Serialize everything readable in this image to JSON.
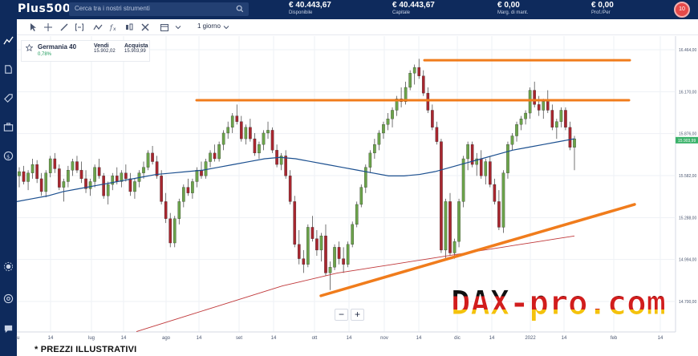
{
  "topbar": {
    "logo": "Plus500",
    "search_placeholder": "Cerca tra i nostri strumenti",
    "stats": [
      {
        "value": "€ 40.443,67",
        "label": "Disponibile"
      },
      {
        "value": "€ 40.443,67",
        "label": "Capitale"
      },
      {
        "value": "€ 0,00",
        "label": "Marg. di mant."
      },
      {
        "value": "€ 0,00",
        "label": "Prof./Per"
      }
    ],
    "avatar_text": "10"
  },
  "toolbar": {
    "timeframe_label": "1 giorno"
  },
  "instrument": {
    "name": "Germania 40",
    "change": "0,78%",
    "sell_label": "Vendi",
    "sell_price": "15.902,02",
    "buy_label": "Acquista",
    "buy_price": "15.903,99"
  },
  "chart_data": {
    "type": "candlestick",
    "x_tick_labels": [
      "lu",
      "14",
      "lug",
      "14",
      "ago",
      "14",
      "set",
      "14",
      "ott",
      "14",
      "nov",
      "14",
      "dic",
      "14",
      "2022",
      "14",
      "feb",
      "14"
    ],
    "y_tick_labels": [
      "14.700,00",
      "14.994,00",
      "15.288,00",
      "15.582,00",
      "15.876,00",
      "16.170,00",
      "16.464,00"
    ],
    "ylim": [
      14700,
      16464
    ],
    "current_price_label": "15.903,99",
    "candles": [
      [
        15580,
        15640,
        15500,
        15610
      ],
      [
        15610,
        15650,
        15520,
        15540
      ],
      [
        15540,
        15620,
        15480,
        15600
      ],
      [
        15600,
        15700,
        15560,
        15660
      ],
      [
        15660,
        15690,
        15530,
        15560
      ],
      [
        15560,
        15600,
        15440,
        15470
      ],
      [
        15470,
        15620,
        15430,
        15600
      ],
      [
        15600,
        15720,
        15570,
        15700
      ],
      [
        15700,
        15740,
        15600,
        15630
      ],
      [
        15630,
        15660,
        15480,
        15500
      ],
      [
        15500,
        15560,
        15400,
        15540
      ],
      [
        15540,
        15650,
        15500,
        15620
      ],
      [
        15620,
        15700,
        15580,
        15680
      ],
      [
        15680,
        15720,
        15600,
        15620
      ],
      [
        15620,
        15680,
        15530,
        15560
      ],
      [
        15560,
        15620,
        15460,
        15490
      ],
      [
        15490,
        15560,
        15440,
        15540
      ],
      [
        15540,
        15660,
        15500,
        15640
      ],
      [
        15640,
        15700,
        15560,
        15580
      ],
      [
        15580,
        15600,
        15420,
        15440
      ],
      [
        15440,
        15540,
        15380,
        15520
      ],
      [
        15520,
        15600,
        15480,
        15580
      ],
      [
        15580,
        15640,
        15520,
        15540
      ],
      [
        15540,
        15620,
        15500,
        15600
      ],
      [
        15600,
        15660,
        15540,
        15560
      ],
      [
        15560,
        15600,
        15440,
        15470
      ],
      [
        15470,
        15560,
        15420,
        15540
      ],
      [
        15540,
        15620,
        15500,
        15600
      ],
      [
        15600,
        15680,
        15560,
        15640
      ],
      [
        15640,
        15760,
        15620,
        15740
      ],
      [
        15740,
        15790,
        15660,
        15680
      ],
      [
        15680,
        15720,
        15560,
        15580
      ],
      [
        15580,
        15620,
        15380,
        15400
      ],
      [
        15400,
        15460,
        15250,
        15280
      ],
      [
        15280,
        15320,
        15080,
        15110
      ],
      [
        15110,
        15300,
        15080,
        15280
      ],
      [
        15280,
        15420,
        15240,
        15400
      ],
      [
        15400,
        15520,
        15360,
        15500
      ],
      [
        15500,
        15560,
        15440,
        15460
      ],
      [
        15460,
        15560,
        15420,
        15540
      ],
      [
        15540,
        15640,
        15500,
        15620
      ],
      [
        15620,
        15680,
        15560,
        15580
      ],
      [
        15580,
        15700,
        15560,
        15680
      ],
      [
        15680,
        15760,
        15640,
        15740
      ],
      [
        15740,
        15800,
        15680,
        15700
      ],
      [
        15700,
        15820,
        15680,
        15800
      ],
      [
        15800,
        15900,
        15760,
        15880
      ],
      [
        15880,
        15960,
        15840,
        15920
      ],
      [
        15920,
        16020,
        15880,
        16000
      ],
      [
        16000,
        16080,
        15940,
        15960
      ],
      [
        15960,
        16000,
        15820,
        15840
      ],
      [
        15840,
        15940,
        15800,
        15920
      ],
      [
        15920,
        15980,
        15820,
        15840
      ],
      [
        15840,
        15880,
        15720,
        15740
      ],
      [
        15740,
        15820,
        15700,
        15800
      ],
      [
        15800,
        15900,
        15760,
        15880
      ],
      [
        15880,
        15960,
        15840,
        15900
      ],
      [
        15900,
        15920,
        15740,
        15760
      ],
      [
        15760,
        15800,
        15640,
        15660
      ],
      [
        15660,
        15740,
        15620,
        15720
      ],
      [
        15720,
        15760,
        15560,
        15580
      ],
      [
        15580,
        15620,
        15380,
        15400
      ],
      [
        15400,
        15440,
        15080,
        15100
      ],
      [
        15100,
        15200,
        14960,
        15000
      ],
      [
        15000,
        15060,
        14900,
        14960
      ],
      [
        14960,
        15240,
        14940,
        15220
      ],
      [
        15220,
        15300,
        15120,
        15140
      ],
      [
        15140,
        15200,
        15020,
        15060
      ],
      [
        15060,
        15180,
        14980,
        15160
      ],
      [
        15160,
        15240,
        14880,
        14900
      ],
      [
        14900,
        14980,
        14780,
        14940
      ],
      [
        14940,
        15100,
        14920,
        15080
      ],
      [
        15080,
        15120,
        14960,
        15000
      ],
      [
        15000,
        15080,
        14900,
        14960
      ],
      [
        14960,
        15120,
        14940,
        15100
      ],
      [
        15100,
        15260,
        15080,
        15240
      ],
      [
        15240,
        15400,
        15220,
        15380
      ],
      [
        15380,
        15520,
        15360,
        15500
      ],
      [
        15500,
        15660,
        15460,
        15640
      ],
      [
        15640,
        15760,
        15600,
        15740
      ],
      [
        15740,
        15840,
        15700,
        15800
      ],
      [
        15800,
        15900,
        15760,
        15880
      ],
      [
        15880,
        15960,
        15840,
        15940
      ],
      [
        15940,
        16020,
        15900,
        15980
      ],
      [
        15980,
        16060,
        15920,
        16040
      ],
      [
        16040,
        16140,
        16000,
        16120
      ],
      [
        16120,
        16200,
        16060,
        16100
      ],
      [
        16100,
        16240,
        16080,
        16200
      ],
      [
        16200,
        16320,
        16180,
        16300
      ],
      [
        16300,
        16360,
        16220,
        16340
      ],
      [
        16340,
        16400,
        16260,
        16280
      ],
      [
        16280,
        16320,
        16140,
        16160
      ],
      [
        16160,
        16200,
        16020,
        16040
      ],
      [
        16040,
        16080,
        15900,
        15920
      ],
      [
        15920,
        15960,
        15800,
        15820
      ],
      [
        15820,
        15840,
        15040,
        15060
      ],
      [
        15060,
        15420,
        15000,
        15400
      ],
      [
        15400,
        15460,
        15020,
        15040
      ],
      [
        15040,
        15140,
        15000,
        15120
      ],
      [
        15120,
        15420,
        15080,
        15400
      ],
      [
        15400,
        15720,
        15360,
        15700
      ],
      [
        15700,
        15820,
        15620,
        15800
      ],
      [
        15800,
        15820,
        15640,
        15660
      ],
      [
        15660,
        15740,
        15580,
        15700
      ],
      [
        15700,
        15760,
        15560,
        15580
      ],
      [
        15580,
        15700,
        15520,
        15680
      ],
      [
        15680,
        15720,
        15500,
        15520
      ],
      [
        15520,
        15560,
        15380,
        15400
      ],
      [
        15400,
        15480,
        15200,
        15220
      ],
      [
        15220,
        15620,
        15180,
        15600
      ],
      [
        15600,
        15820,
        15560,
        15800
      ],
      [
        15800,
        15880,
        15760,
        15860
      ],
      [
        15860,
        15960,
        15820,
        15940
      ],
      [
        15940,
        16000,
        15900,
        15980
      ],
      [
        15980,
        16040,
        15940,
        16020
      ],
      [
        16020,
        16200,
        15980,
        16180
      ],
      [
        16180,
        16240,
        16060,
        16080
      ],
      [
        16080,
        16140,
        16000,
        16040
      ],
      [
        16040,
        16120,
        15980,
        16100
      ],
      [
        16100,
        16180,
        16020,
        16040
      ],
      [
        16040,
        16080,
        15900,
        15920
      ],
      [
        15920,
        15980,
        15840,
        15960
      ],
      [
        15960,
        16060,
        15920,
        16040
      ],
      [
        16040,
        16060,
        15900,
        15920
      ],
      [
        15920,
        15960,
        15760,
        15780
      ],
      [
        15780,
        15860,
        15620,
        15840
      ]
    ],
    "ma_fast": [
      15400,
      15420,
      15440,
      15470,
      15490,
      15510,
      15530,
      15550,
      15570,
      15590,
      15600,
      15610,
      15620,
      15640,
      15660,
      15680,
      15700,
      15710,
      15700,
      15680,
      15660,
      15640,
      15620,
      15600,
      15580,
      15580,
      15590,
      15610,
      15640,
      15670,
      15700,
      15730,
      15760,
      15780,
      15800,
      15820,
      15840
    ],
    "ma_slow": [
      14680,
      14720,
      14760,
      14800,
      14840,
      14880,
      14920,
      14960,
      15000,
      15030,
      15060,
      15090,
      15110,
      15130,
      15150,
      15170,
      15190,
      15210,
      15230,
      15250,
      15270,
      15290,
      15310,
      15330,
      15350
    ],
    "annotation_lines": [
      {
        "kind": "resistance",
        "price": 16390
      },
      {
        "kind": "resistance",
        "price": 16110
      },
      {
        "kind": "support",
        "start_price": 14740,
        "end_price": 15380
      }
    ]
  },
  "zoom": {
    "minus": "−",
    "plus": "+"
  },
  "watermark_text": "DAX-pro.com",
  "footnote": "* PREZZI ILLUSTRATIVI",
  "colors": {
    "navy": "#0e2a5c",
    "bull": "#6ba34a",
    "bear": "#a8262f",
    "ma_fast": "#1b4f8f",
    "ma_slow": "#c0393b",
    "trendline": "#f07c1c"
  }
}
